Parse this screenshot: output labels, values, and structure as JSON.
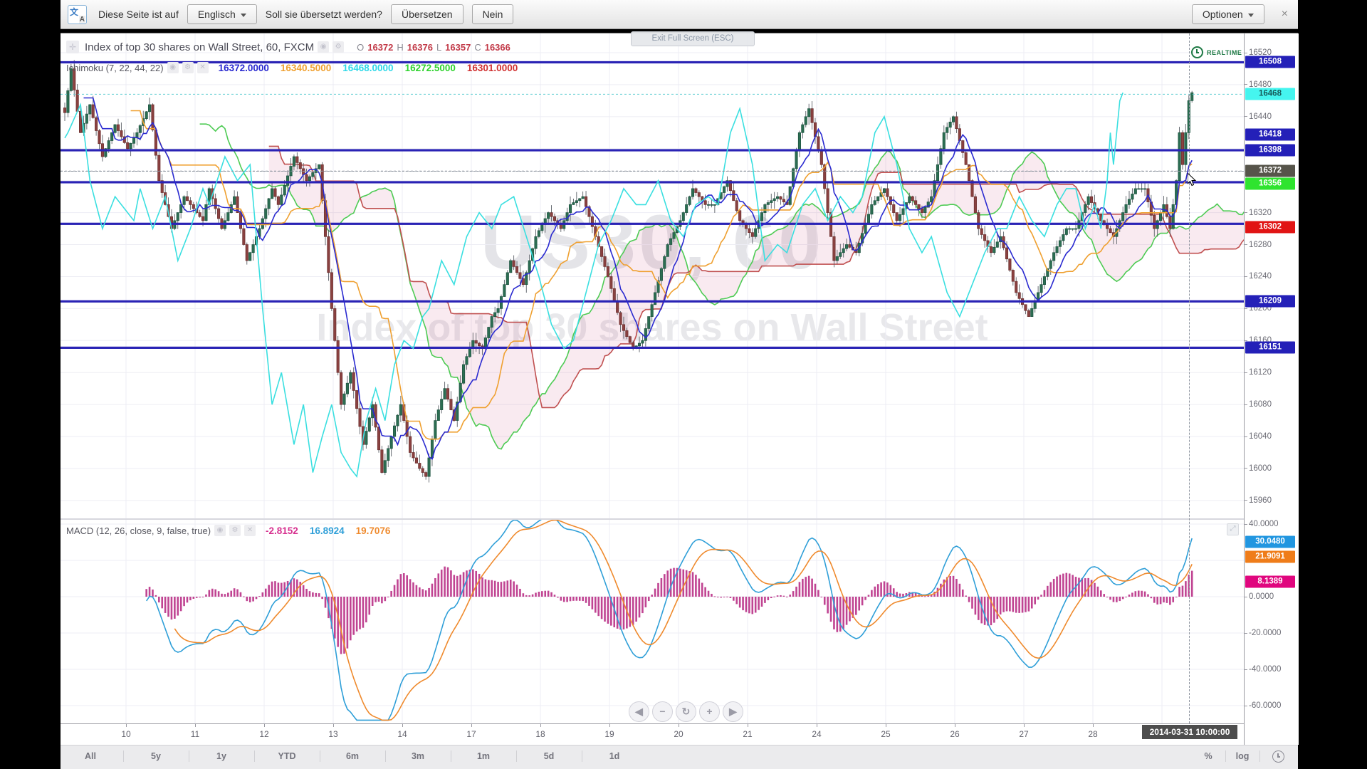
{
  "translate_bar": {
    "text_before": "Diese Seite ist auf",
    "language_button": "Englisch",
    "question": "Soll sie übersetzt werden?",
    "translate_button": "Übersetzen",
    "no_button": "Nein",
    "options_button": "Optionen",
    "close_label": "×"
  },
  "tooltip": "Exit Full Screen (ESC)",
  "header": {
    "title": "Index of top 30 shares on Wall Street, 60, FXCM",
    "realtime": "REALTIME",
    "ohlc": {
      "o_label": "O",
      "o": "16372",
      "h_label": "H",
      "h": "16376",
      "l_label": "L",
      "l": "16357",
      "c_label": "C",
      "c": "16366"
    }
  },
  "ichimoku": {
    "label": "Ichimoku (7, 22, 44, 22)",
    "values": [
      {
        "text": "16372.0000",
        "color": "#2a2ad0"
      },
      {
        "text": "16340.5000",
        "color": "#efa030"
      },
      {
        "text": "16468.0000",
        "color": "#2fd8e8"
      },
      {
        "text": "16272.5000",
        "color": "#2ed22e"
      },
      {
        "text": "16301.0000",
        "color": "#d03030"
      }
    ]
  },
  "macd_header": {
    "label": "MACD (12, 26, close, 9, false, true)",
    "values": [
      {
        "text": "-2.8152",
        "color": "#d6308f"
      },
      {
        "text": "16.8924",
        "color": "#2f9fd8"
      },
      {
        "text": "19.7076",
        "color": "#ef8a2d"
      }
    ]
  },
  "watermark": {
    "line1": "US30, 60",
    "line2": "Index of top 30 shares on Wall Street"
  },
  "price_axis": {
    "ticks": [
      16520,
      16480,
      16440,
      16320,
      16280,
      16240,
      16200,
      16160,
      16120,
      16080,
      16040,
      16000,
      15960
    ],
    "labels": [
      {
        "text": "16508",
        "price": 16508,
        "bg": "#2420b8",
        "fg": "#ffffff"
      },
      {
        "text": "16468",
        "price": 16468,
        "bg": "#45f5ef",
        "fg": "#175a5a"
      },
      {
        "text": "16418",
        "price": 16418,
        "bg": "#2420b8",
        "fg": "#ffffff"
      },
      {
        "text": "16398",
        "price": 16398,
        "bg": "#2420b8",
        "fg": "#ffffff"
      },
      {
        "text": "16356",
        "price": 16356,
        "bg": "#2fe42f",
        "fg": "#ffffff"
      },
      {
        "text": "16372",
        "price": 16372,
        "bg": "#56544a",
        "fg": "#ffffff"
      },
      {
        "text": "16302",
        "price": 16302,
        "bg": "#e11414",
        "fg": "#ffffff"
      },
      {
        "text": "16209",
        "price": 16209,
        "bg": "#2420b8",
        "fg": "#ffffff"
      },
      {
        "text": "16151",
        "price": 16151,
        "bg": "#2420b8",
        "fg": "#ffffff"
      }
    ]
  },
  "macd_axis": {
    "ticks": [
      {
        "text": "40.0000",
        "v": 40
      },
      {
        "text": "0.0000",
        "v": 0
      },
      {
        "text": "-20.0000",
        "v": -20
      },
      {
        "text": "-40.0000",
        "v": -40
      },
      {
        "text": "-60.0000",
        "v": -60
      }
    ],
    "labels": [
      {
        "text": "30.0480",
        "v": 30.048,
        "bg": "#2196e0",
        "fg": "#ffffff"
      },
      {
        "text": "21.9091",
        "v": 21.9091,
        "bg": "#ef7d1a",
        "fg": "#ffffff"
      },
      {
        "text": "8.1389",
        "v": 8.1389,
        "bg": "#e0067e",
        "fg": "#ffffff"
      }
    ]
  },
  "time_axis": {
    "days": [
      "10",
      "11",
      "12",
      "13",
      "14",
      "17",
      "18",
      "19",
      "20",
      "21",
      "24",
      "25",
      "26",
      "27",
      "28"
    ],
    "crosshair_time": "2014-03-31 10:00:00"
  },
  "range_toolbar": {
    "items": [
      "All",
      "5y",
      "1y",
      "YTD",
      "6m",
      "3m",
      "1m",
      "5d",
      "1d"
    ],
    "right_items": [
      "%",
      "log"
    ]
  },
  "nav_buttons": [
    "◀",
    "−",
    "↻",
    "+",
    "▶"
  ],
  "chart_data": {
    "type": "candlestick+ichimoku+macd",
    "symbol": "US30",
    "interval": "60",
    "exchange": "FXCM",
    "ichimoku_params": [
      7,
      22,
      44,
      22
    ],
    "macd_params": [
      12,
      26,
      9
    ],
    "price_range_visible": [
      15946,
      16533
    ],
    "macd_range_visible": [
      -65,
      42
    ],
    "horizontal_levels": [
      16508,
      16398,
      16358,
      16306,
      16209,
      16151
    ],
    "dashed_levels": [
      {
        "price": 16468,
        "color": "#66cfd4"
      },
      {
        "price": 16372,
        "color": "#8f96a0"
      }
    ],
    "bars": 360,
    "close_anchors": [
      [
        0,
        16445
      ],
      [
        2,
        16500
      ],
      [
        5,
        16420
      ],
      [
        8,
        16455
      ],
      [
        12,
        16390
      ],
      [
        16,
        16430
      ],
      [
        20,
        16400
      ],
      [
        23,
        16420
      ],
      [
        27,
        16455
      ],
      [
        30,
        16360
      ],
      [
        34,
        16300
      ],
      [
        38,
        16340
      ],
      [
        44,
        16310
      ],
      [
        46,
        16350
      ],
      [
        50,
        16300
      ],
      [
        54,
        16340
      ],
      [
        58,
        16260
      ],
      [
        62,
        16300
      ],
      [
        66,
        16350
      ],
      [
        68,
        16330
      ],
      [
        73,
        16390
      ],
      [
        77,
        16360
      ],
      [
        81,
        16380
      ],
      [
        85,
        16200
      ],
      [
        88,
        16080
      ],
      [
        91,
        16120
      ],
      [
        95,
        16030
      ],
      [
        98,
        16080
      ],
      [
        101,
        15995
      ],
      [
        104,
        16040
      ],
      [
        107,
        16080
      ],
      [
        110,
        16020
      ],
      [
        113,
        16000
      ],
      [
        115,
        15990
      ],
      [
        118,
        16060
      ],
      [
        121,
        16100
      ],
      [
        124,
        16060
      ],
      [
        127,
        16130
      ],
      [
        130,
        16160
      ],
      [
        133,
        16150
      ],
      [
        136,
        16190
      ],
      [
        138,
        16200
      ],
      [
        142,
        16260
      ],
      [
        146,
        16230
      ],
      [
        150,
        16290
      ],
      [
        154,
        16320
      ],
      [
        158,
        16300
      ],
      [
        161,
        16330
      ],
      [
        165,
        16340
      ],
      [
        169,
        16290
      ],
      [
        173,
        16240
      ],
      [
        177,
        16180
      ],
      [
        181,
        16150
      ],
      [
        184,
        16160
      ],
      [
        188,
        16220
      ],
      [
        192,
        16280
      ],
      [
        196,
        16310
      ],
      [
        200,
        16350
      ],
      [
        204,
        16330
      ],
      [
        207,
        16330
      ],
      [
        211,
        16360
      ],
      [
        215,
        16310
      ],
      [
        219,
        16290
      ],
      [
        223,
        16330
      ],
      [
        227,
        16340
      ],
      [
        230,
        16330
      ],
      [
        234,
        16420
      ],
      [
        237,
        16450
      ],
      [
        241,
        16380
      ],
      [
        245,
        16260
      ],
      [
        249,
        16280
      ],
      [
        252,
        16270
      ],
      [
        257,
        16330
      ],
      [
        261,
        16350
      ],
      [
        265,
        16310
      ],
      [
        269,
        16340
      ],
      [
        273,
        16320
      ],
      [
        276,
        16340
      ],
      [
        280,
        16420
      ],
      [
        283,
        16440
      ],
      [
        287,
        16380
      ],
      [
        291,
        16300
      ],
      [
        295,
        16270
      ],
      [
        298,
        16290
      ],
      [
        303,
        16220
      ],
      [
        307,
        16190
      ],
      [
        311,
        16230
      ],
      [
        315,
        16270
      ],
      [
        319,
        16300
      ],
      [
        322,
        16300
      ],
      [
        326,
        16340
      ],
      [
        330,
        16310
      ],
      [
        334,
        16290
      ],
      [
        338,
        16330
      ],
      [
        341,
        16350
      ],
      [
        344,
        16350
      ],
      [
        347,
        16300
      ],
      [
        350,
        16330
      ],
      [
        352,
        16300
      ],
      [
        354,
        16360
      ],
      [
        355,
        16420
      ],
      [
        356,
        16380
      ],
      [
        358,
        16460
      ],
      [
        359,
        16470
      ]
    ],
    "colors": {
      "up": "#2c6e52",
      "up_border": "#1d5340",
      "down": "#8a4140",
      "down_border": "#6b2f2e",
      "wick": "#5a5f66",
      "tenkan": "#2a2ad0",
      "kijun": "#efa030",
      "chikou": "#3adfe0",
      "senkou_a": "#4ecb54",
      "senkou_b": "#c05050",
      "cloud": "rgba(208,82,130,0.12)",
      "level": "#2a23b5",
      "macd_line": "#2f9fd8",
      "signal_line": "#ef8a2d",
      "histogram": "#b93086",
      "grid": "#ededf4"
    }
  }
}
